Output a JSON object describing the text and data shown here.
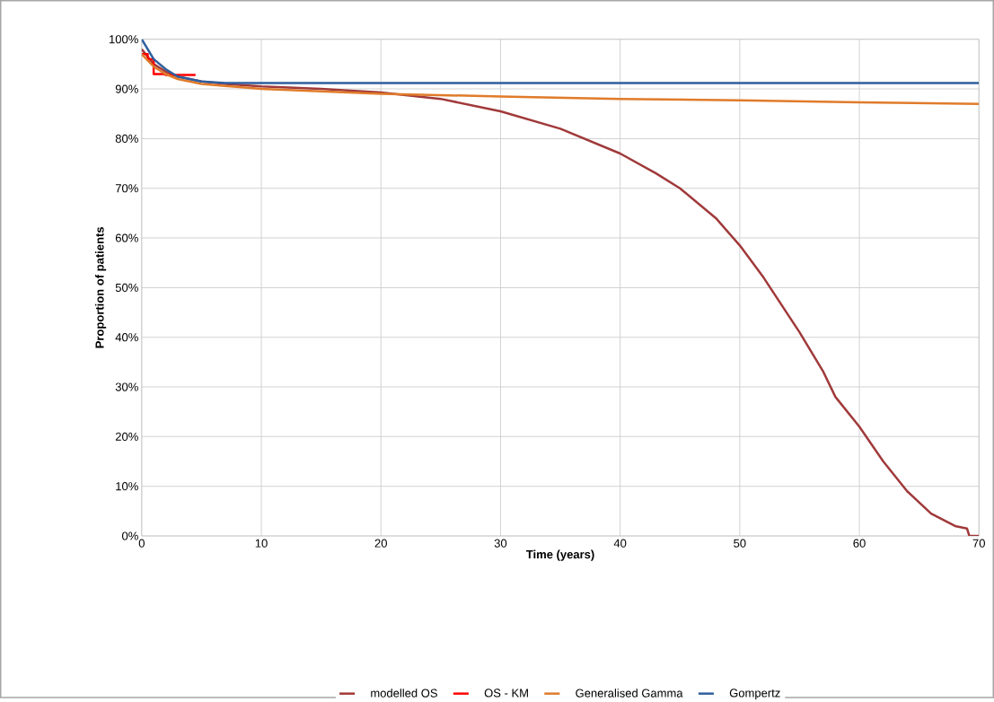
{
  "chart_data": {
    "type": "line",
    "xlabel": "Time (years)",
    "ylabel": "Proportion of patients",
    "xlim": [
      0,
      70
    ],
    "xticks": [
      0,
      10,
      20,
      30,
      40,
      50,
      60,
      70
    ],
    "ylim": [
      0,
      100
    ],
    "yticks": [
      {
        "value": 0,
        "label": "0%"
      },
      {
        "value": 10,
        "label": "10%"
      },
      {
        "value": 20,
        "label": "20%"
      },
      {
        "value": 30,
        "label": "30%"
      },
      {
        "value": 40,
        "label": "40%"
      },
      {
        "value": 50,
        "label": "50%"
      },
      {
        "value": 60,
        "label": "60%"
      },
      {
        "value": 70,
        "label": "70%"
      },
      {
        "value": 80,
        "label": "80%"
      },
      {
        "value": 90,
        "label": "90%"
      },
      {
        "value": 100,
        "label": "100%"
      }
    ],
    "grid": true,
    "legend": "bottom",
    "marker": "none",
    "line_style": "solid",
    "series": [
      {
        "name": "modelled OS",
        "color": "#a0393a",
        "x": [
          0,
          1,
          2,
          3,
          5,
          7,
          10,
          15,
          20,
          25,
          30,
          35,
          40,
          43,
          45,
          48,
          50,
          52,
          55,
          57,
          58,
          60,
          62,
          64,
          66,
          68,
          69,
          69.2,
          70
        ],
        "values": [
          98,
          95,
          93.5,
          92.5,
          91.5,
          91,
          90.5,
          90,
          89.3,
          88,
          85.5,
          82,
          77,
          73,
          70,
          64,
          58.5,
          52,
          41,
          33,
          28,
          22,
          15,
          9,
          4.5,
          2,
          1.5,
          0,
          0
        ]
      },
      {
        "name": "OS - KM",
        "type": "step",
        "color": "#ff0000",
        "x": [
          0,
          0.5,
          1,
          2,
          4.5
        ],
        "values": [
          97,
          96,
          93,
          92.8,
          92.8
        ]
      },
      {
        "name": "Generalised Gamma",
        "color": "#e07b2a",
        "x": [
          0,
          1,
          2,
          3,
          5,
          10,
          15,
          20,
          30,
          40,
          50,
          60,
          70
        ],
        "values": [
          97,
          94.5,
          93,
          92,
          91,
          90,
          89.5,
          89,
          88.5,
          88,
          87.7,
          87.3,
          87
        ]
      },
      {
        "name": "Gompertz",
        "color": "#2e5f9e",
        "x": [
          0,
          1,
          2,
          3,
          4,
          5,
          7,
          70
        ],
        "values": [
          100,
          96,
          94,
          92.5,
          92,
          91.5,
          91.2,
          91.2
        ]
      }
    ]
  }
}
